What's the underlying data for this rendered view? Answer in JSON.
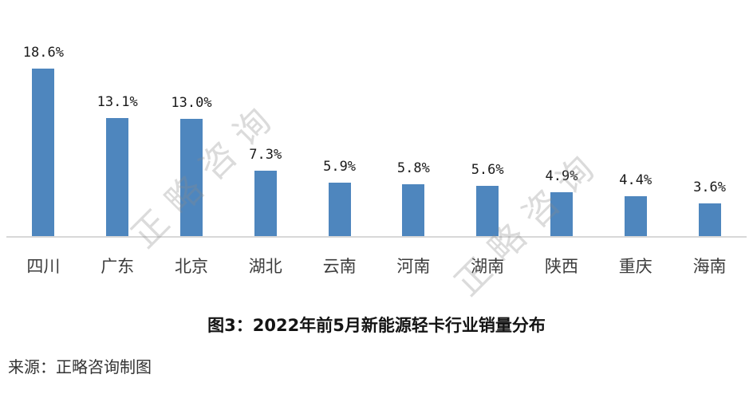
{
  "chart_data": {
    "type": "bar",
    "title": "图3：2022年前5月新能源轻卡行业销量分布",
    "categories": [
      "四川",
      "广东",
      "北京",
      "湖北",
      "云南",
      "河南",
      "湖南",
      "陕西",
      "重庆",
      "海南"
    ],
    "values": [
      18.6,
      13.1,
      13.0,
      7.3,
      5.9,
      5.8,
      5.6,
      4.9,
      4.4,
      3.6
    ],
    "value_labels": [
      "18.6%",
      "13.1%",
      "13.0%",
      "7.3%",
      "5.9%",
      "5.8%",
      "5.6%",
      "4.9%",
      "4.4%",
      "3.6%"
    ],
    "xlabel": "",
    "ylabel": "",
    "ylim": [
      0,
      20
    ],
    "grid": false,
    "legend": "none",
    "bar_color": "#4E86BE",
    "axis_line_color": "#D8D8D8"
  },
  "source": "来源：正略咨询制图",
  "watermark": "正略咨询"
}
